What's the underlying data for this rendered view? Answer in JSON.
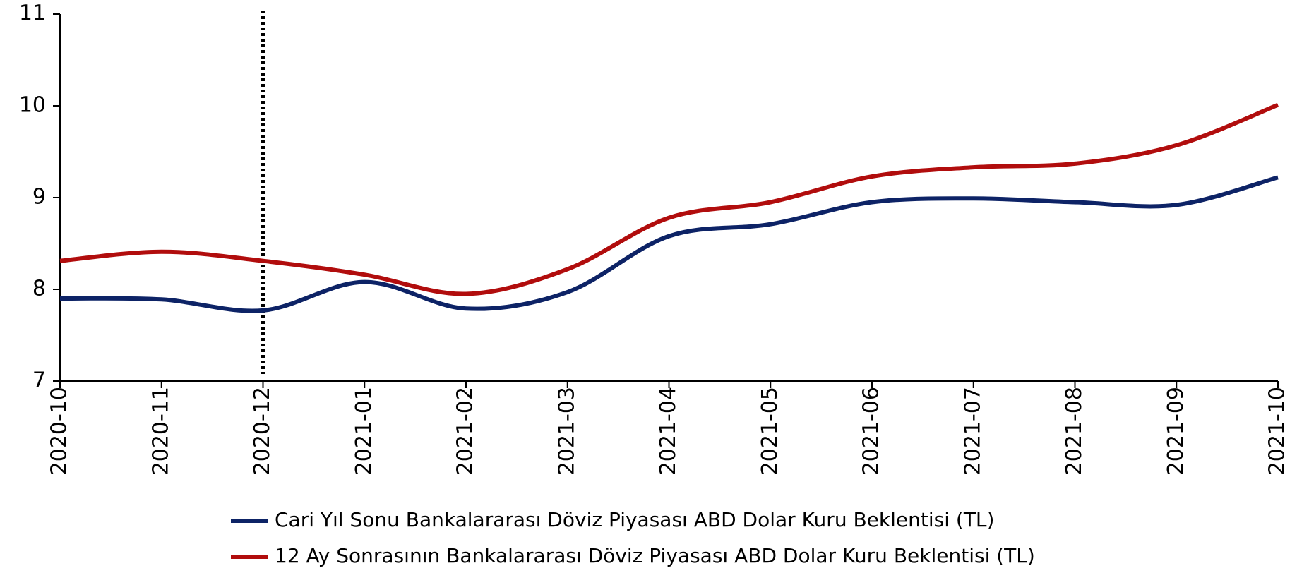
{
  "chart_data": {
    "type": "line",
    "categories": [
      "2020-10",
      "2020-11",
      "2020-12",
      "2021-01",
      "2021-02",
      "2021-03",
      "2021-04",
      "2021-05",
      "2021-06",
      "2021-07",
      "2021-08",
      "2021-09",
      "2021-10"
    ],
    "series": [
      {
        "name": "Cari Yıl Sonu Bankalararası Döviz Piyasası ABD Dolar Kuru Beklentisi (TL)",
        "color": "#0d2366",
        "values": [
          7.9,
          7.89,
          7.77,
          8.08,
          7.79,
          7.97,
          8.58,
          8.71,
          8.95,
          8.99,
          8.95,
          8.92,
          9.22
        ]
      },
      {
        "name": "12 Ay Sonrasının Bankalararası Döviz Piyasası ABD Dolar Kuru Beklentisi (TL)",
        "color": "#b10d0d",
        "values": [
          8.31,
          8.41,
          8.31,
          8.16,
          7.95,
          8.22,
          8.78,
          8.95,
          9.23,
          9.33,
          9.37,
          9.57,
          10.01
        ]
      }
    ],
    "ylim": [
      7,
      11
    ],
    "yticks": [
      7,
      8,
      9,
      10,
      11
    ],
    "vline_at": "2020-12",
    "legend": "bottom"
  }
}
